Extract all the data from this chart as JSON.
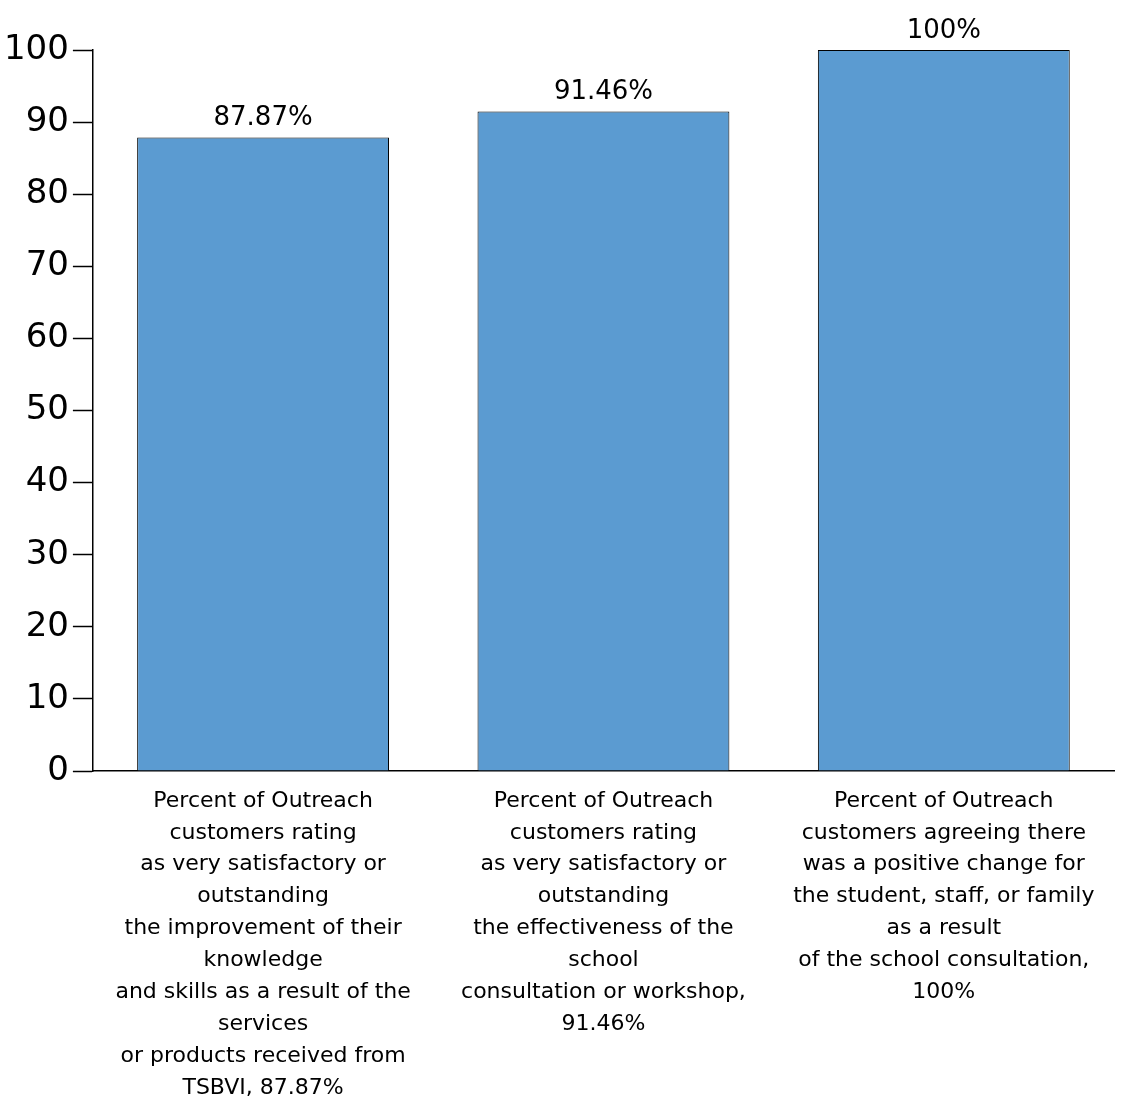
{
  "chart_data": {
    "type": "bar",
    "categories": [
      "Percent of Outreach\ncustomers rating\nas very satisfactory or\noutstanding\nthe improvement of their\nknowledge\nand skills as a result of the\nservices\nor products received from\nTSBVI, 87.87%",
      "Percent of Outreach\ncustomers rating\nas very satisfactory or\noutstanding\nthe effectiveness of the\nschool\nconsultation or workshop,\n91.46%",
      "Percent of Outreach\ncustomers agreeing there\nwas a positive change for\nthe student, staff, or family\nas a result\nof the school consultation,\n100%"
    ],
    "values": [
      87.87,
      91.46,
      100
    ],
    "value_labels": [
      "87.87%",
      "91.46%",
      "100%"
    ],
    "color": "#5b9bd1",
    "ylim": [
      0,
      100
    ],
    "yticks": [
      0,
      10,
      20,
      30,
      40,
      50,
      60,
      70,
      80,
      90,
      100
    ],
    "grid": false,
    "legend": false
  }
}
